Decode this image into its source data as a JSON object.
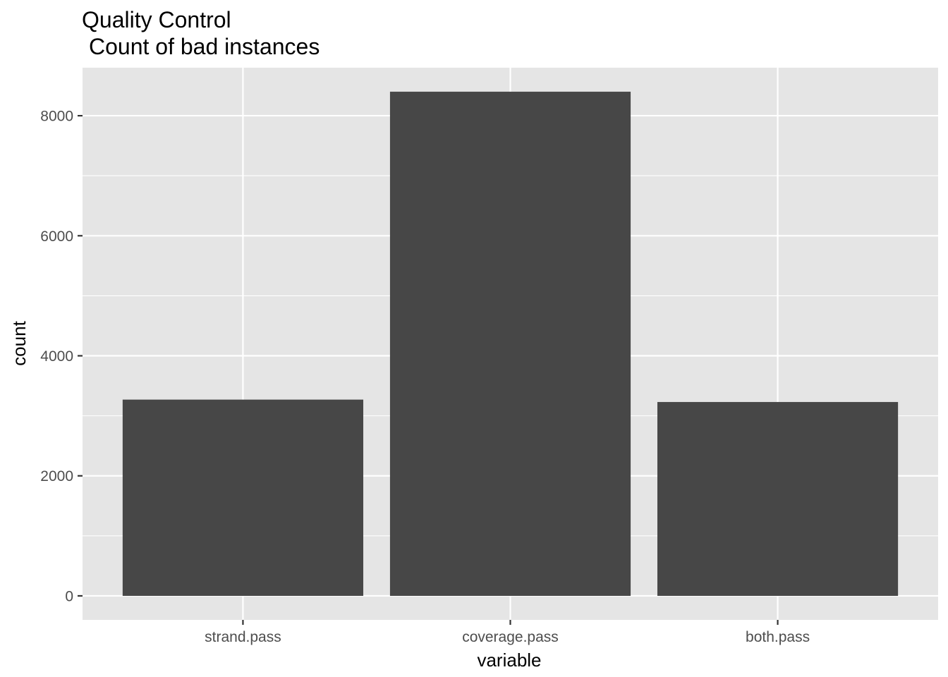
{
  "chart_data": {
    "type": "bar",
    "title": "Quality Control",
    "subtitle": "Count of bad instances",
    "xlabel": "variable",
    "ylabel": "count",
    "categories": [
      "strand.pass",
      "coverage.pass",
      "both.pass"
    ],
    "values": [
      3270,
      8400,
      3230
    ],
    "ylim": [
      -400,
      8800
    ],
    "yticks": [
      0,
      2000,
      4000,
      6000,
      8000
    ],
    "ytick_labels": [
      "0",
      "2000",
      "4000",
      "6000",
      "8000"
    ],
    "grid": true,
    "legend": "none",
    "colors": {
      "bar": "#474747",
      "panel": "#e5e5e5",
      "grid": "#ffffff",
      "tick_text": "#4d4d4d"
    }
  }
}
